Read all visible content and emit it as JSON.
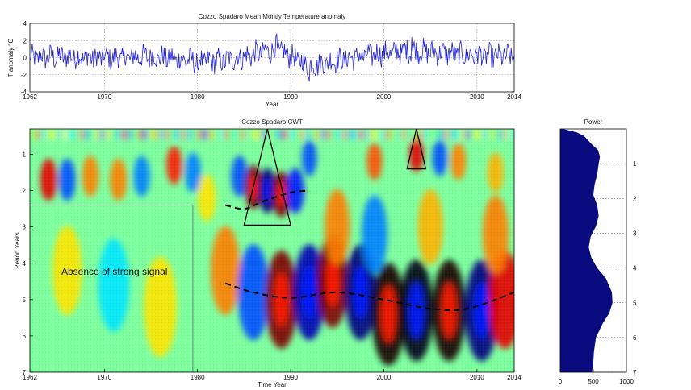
{
  "chart_data": [
    {
      "type": "line",
      "title": "Cozzo Spadaro Mean Montly Temperature anomaly",
      "xlabel": "Year",
      "ylabel": "T anomaly °C",
      "xlim": [
        1962,
        2014
      ],
      "ylim": [
        -4,
        4
      ],
      "grid": true,
      "color": "#1f1fd6",
      "xticks": [
        "1962",
        "1970",
        "1980",
        "1990",
        "2000",
        "2010",
        "2014"
      ],
      "yticks": [
        "4",
        "2",
        "0",
        "-2",
        "-4"
      ],
      "summary_points": [
        {
          "x": 1962,
          "y": 0.0
        },
        {
          "x": 1966,
          "y": 0.3
        },
        {
          "x": 1970,
          "y": -0.2
        },
        {
          "x": 1975,
          "y": 0.4
        },
        {
          "x": 1980,
          "y": -1.2
        },
        {
          "x": 1983,
          "y": -1.0
        },
        {
          "x": 1988.5,
          "y": 2.8
        },
        {
          "x": 1992,
          "y": -2.8
        },
        {
          "x": 1998,
          "y": 0.8
        },
        {
          "x": 2003,
          "y": 2.4
        },
        {
          "x": 2010,
          "y": 0.6
        },
        {
          "x": 2014,
          "y": 0.3
        }
      ]
    },
    {
      "type": "heatmap",
      "title": "Cozzo Spadaro CWT",
      "xlabel": "Time Year",
      "ylabel": "Period Years",
      "xlim": [
        1962,
        2014
      ],
      "ylim": [
        7,
        0.3
      ],
      "xticks": [
        "1962",
        "1970",
        "1980",
        "1990",
        "2000",
        "2010",
        "2014"
      ],
      "yticks": [
        "1",
        "2",
        "3",
        "4",
        "5",
        "6",
        "7"
      ],
      "annotation": "Absence of strong signal",
      "colormap": "jet",
      "ridge_lines": [
        [
          [
            1983,
            2.4
          ],
          [
            1985,
            2.5
          ],
          [
            1987,
            2.3
          ],
          [
            1990,
            2.05
          ],
          [
            1992,
            2.0
          ]
        ],
        [
          [
            1983,
            4.55
          ],
          [
            1986,
            4.8
          ],
          [
            1990,
            4.95
          ],
          [
            1995,
            4.8
          ],
          [
            2000,
            5.0
          ],
          [
            2005,
            5.25
          ],
          [
            2009,
            5.25
          ],
          [
            2014,
            4.8
          ]
        ]
      ],
      "triangles": [
        {
          "apex": [
            1987.5,
            0.3
          ],
          "base_left": [
            1985,
            2.95
          ],
          "base_right": [
            1990,
            2.95
          ]
        },
        {
          "apex": [
            2003.5,
            0.3
          ],
          "base_left": [
            2002.5,
            1.4
          ],
          "base_right": [
            2004.5,
            1.4
          ]
        }
      ],
      "blobs": [
        {
          "x": 1964,
          "p": 1.7,
          "v": 0.8
        },
        {
          "x": 1966,
          "p": 1.7,
          "v": -0.6
        },
        {
          "x": 1968.5,
          "p": 1.6,
          "v": 0.5
        },
        {
          "x": 1971.5,
          "p": 1.7,
          "v": 0.5
        },
        {
          "x": 1974,
          "p": 1.6,
          "v": -0.5
        },
        {
          "x": 1977.5,
          "p": 1.3,
          "v": 0.7
        },
        {
          "x": 1979.5,
          "p": 1.5,
          "v": -0.5
        },
        {
          "x": 1981,
          "p": 2.2,
          "v": 0.3
        },
        {
          "x": 1984.5,
          "p": 1.6,
          "v": -0.6
        },
        {
          "x": 1986,
          "p": 1.9,
          "v": 1.0
        },
        {
          "x": 1987.5,
          "p": 2.0,
          "v": -1.0
        },
        {
          "x": 1989,
          "p": 2.1,
          "v": 1.0
        },
        {
          "x": 1990.5,
          "p": 2.0,
          "v": -0.7
        },
        {
          "x": 1992,
          "p": 1.1,
          "v": -0.6
        },
        {
          "x": 1999,
          "p": 1.2,
          "v": 0.6
        },
        {
          "x": 2003.5,
          "p": 1.0,
          "v": 0.8
        },
        {
          "x": 2006,
          "p": 1.1,
          "v": -0.6
        },
        {
          "x": 2008,
          "p": 1.2,
          "v": 0.5
        },
        {
          "x": 2012,
          "p": 1.5,
          "v": 0.4
        },
        {
          "x": 1983,
          "p": 4.2,
          "v": 0.5
        },
        {
          "x": 1986,
          "p": 4.8,
          "v": -0.6
        },
        {
          "x": 1989,
          "p": 5.0,
          "v": 1.0
        },
        {
          "x": 1992,
          "p": 4.8,
          "v": -0.9
        },
        {
          "x": 1994.5,
          "p": 4.5,
          "v": 1.0
        },
        {
          "x": 1997.5,
          "p": 4.8,
          "v": -1.0
        },
        {
          "x": 2000.5,
          "p": 5.4,
          "v": 1.2
        },
        {
          "x": 2003.5,
          "p": 5.3,
          "v": -1.2
        },
        {
          "x": 2007,
          "p": 5.3,
          "v": 1.2
        },
        {
          "x": 2010.5,
          "p": 5.3,
          "v": -1.0
        },
        {
          "x": 2013,
          "p": 5.0,
          "v": 0.8
        },
        {
          "x": 1966,
          "p": 4.2,
          "v": 0.3
        },
        {
          "x": 1971,
          "p": 4.6,
          "v": -0.3
        },
        {
          "x": 1976,
          "p": 5.2,
          "v": 0.3
        },
        {
          "x": 1995,
          "p": 3.0,
          "v": 0.5
        },
        {
          "x": 1999,
          "p": 3.2,
          "v": -0.5
        },
        {
          "x": 2005,
          "p": 3.0,
          "v": 0.4
        },
        {
          "x": 2012,
          "p": 3.2,
          "v": 0.5
        }
      ]
    },
    {
      "type": "area",
      "title": "Power",
      "xlim": [
        0,
        1000
      ],
      "ylim": [
        7,
        0
      ],
      "xticks": [
        "0",
        "500",
        "1000"
      ],
      "yticks": [
        "1",
        "2",
        "3",
        "4",
        "5",
        "6",
        "7"
      ],
      "color": "#0b0b80",
      "profile": [
        {
          "period": 0.0,
          "power": 40
        },
        {
          "period": 0.1,
          "power": 250
        },
        {
          "period": 0.2,
          "power": 360
        },
        {
          "period": 0.45,
          "power": 480
        },
        {
          "period": 0.6,
          "power": 570
        },
        {
          "period": 0.8,
          "power": 600
        },
        {
          "period": 1.0,
          "power": 580
        },
        {
          "period": 1.3,
          "power": 560
        },
        {
          "period": 1.6,
          "power": 520
        },
        {
          "period": 1.9,
          "power": 500
        },
        {
          "period": 2.2,
          "power": 560
        },
        {
          "period": 2.5,
          "power": 580
        },
        {
          "period": 2.8,
          "power": 540
        },
        {
          "period": 3.1,
          "power": 460
        },
        {
          "period": 3.4,
          "power": 430
        },
        {
          "period": 3.7,
          "power": 470
        },
        {
          "period": 4.0,
          "power": 560
        },
        {
          "period": 4.3,
          "power": 690
        },
        {
          "period": 4.7,
          "power": 780
        },
        {
          "period": 5.0,
          "power": 790
        },
        {
          "period": 5.3,
          "power": 740
        },
        {
          "period": 5.6,
          "power": 640
        },
        {
          "period": 6.0,
          "power": 540
        },
        {
          "period": 6.4,
          "power": 510
        },
        {
          "period": 6.7,
          "power": 500
        },
        {
          "period": 7.0,
          "power": 480
        }
      ]
    }
  ]
}
